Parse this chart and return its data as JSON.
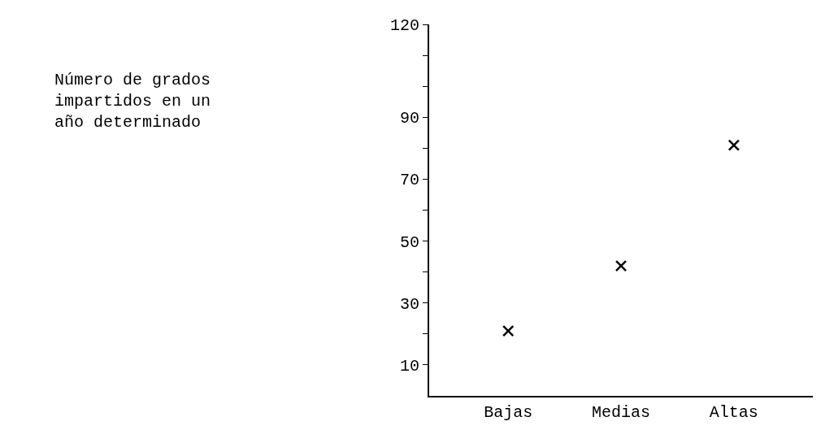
{
  "chart_data": {
    "type": "scatter",
    "annotations": [
      "Número de grados\nimpartidos en un\naño determinado"
    ],
    "categories": [
      "Bajas",
      "Medias",
      "Altas"
    ],
    "series": [
      {
        "color": "#000000",
        "values": [
          21,
          42,
          81
        ]
      }
    ],
    "ylim": [
      0,
      120
    ],
    "yticks": [
      {
        "value": 10,
        "label": "10"
      },
      {
        "value": 20,
        "label": null
      },
      {
        "value": 30,
        "label": "30"
      },
      {
        "value": 40,
        "label": null
      },
      {
        "value": 50,
        "label": "50"
      },
      {
        "value": 60,
        "label": null
      },
      {
        "value": 70,
        "label": "70"
      },
      {
        "value": 80,
        "label": null
      },
      {
        "value": 90,
        "label": "90"
      },
      {
        "value": 100,
        "label": null
      },
      {
        "value": 110,
        "label": null
      },
      {
        "value": 120,
        "label": "120"
      }
    ],
    "marker": "cross"
  }
}
